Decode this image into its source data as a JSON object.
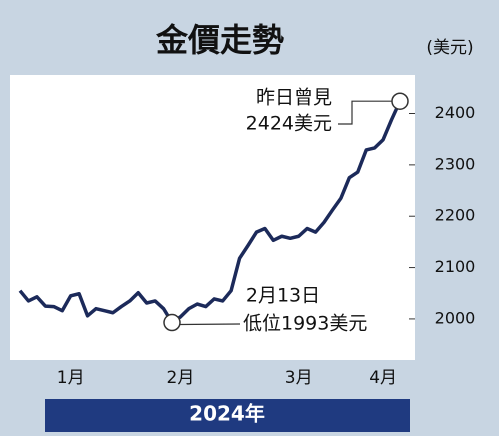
{
  "chart_data": {
    "type": "line",
    "title": "金價走勢",
    "unit": "(美元)",
    "x_label": "2024年",
    "categories": [
      null,
      null,
      null,
      null,
      null,
      null,
      "1月",
      null,
      null,
      null,
      null,
      null,
      null,
      null,
      null,
      null,
      null,
      null,
      null,
      "2月",
      null,
      null,
      null,
      null,
      null,
      null,
      null,
      null,
      null,
      null,
      null,
      null,
      null,
      "3月",
      null,
      null,
      null,
      null,
      null,
      null,
      null,
      null,
      null,
      "4月",
      null,
      null
    ],
    "series": [
      {
        "name": "金價",
        "color": "#1c2a5a",
        "values": [
          2055,
          2035,
          2043,
          2025,
          2024,
          2016,
          2045,
          2049,
          2006,
          2020,
          2016,
          2012,
          2024,
          2035,
          2051,
          2031,
          2035,
          2020,
          1993,
          2004,
          2020,
          2029,
          2024,
          2039,
          2035,
          2055,
          2118,
          2143,
          2169,
          2176,
          2153,
          2161,
          2157,
          2161,
          2176,
          2169,
          2188,
          2212,
          2235,
          2275,
          2286,
          2329,
          2333,
          2349,
          2388,
          2424
        ]
      }
    ],
    "ylim": [
      1920,
      2475
    ],
    "yticks": [
      2000,
      2100,
      2200,
      2300,
      2400
    ],
    "annotations": [
      {
        "lines": [
          "昨日曾見",
          "2424美元"
        ],
        "index": 45
      },
      {
        "lines": [
          "2月13日",
          "低位1993美元"
        ],
        "index": 18
      }
    ]
  }
}
